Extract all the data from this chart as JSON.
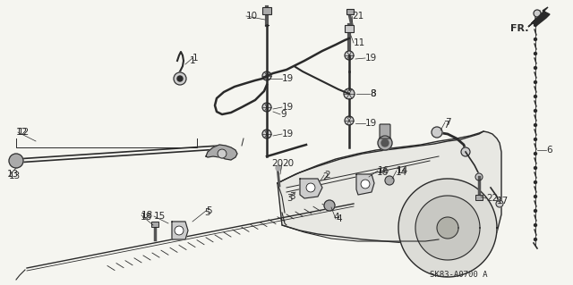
{
  "background_color": "#f5f5f0",
  "line_color": "#2a2a2a",
  "fig_width": 6.4,
  "fig_height": 3.19,
  "dpi": 100,
  "diagram_code": "SK83-A0700 A",
  "gray_fill": "#888888",
  "med_gray": "#aaaaaa",
  "light_gray": "#cccccc",
  "dark_gray": "#555555"
}
